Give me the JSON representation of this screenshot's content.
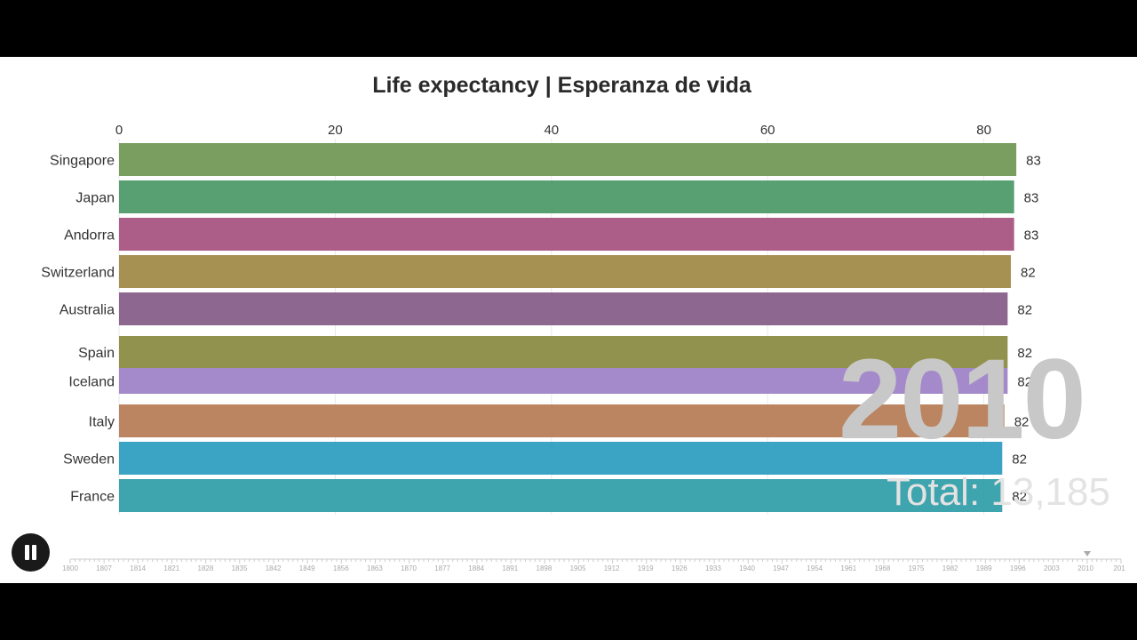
{
  "title": "Life expectancy | Esperanza de vida",
  "year_label": "2010",
  "total_label": "Total: 13,185",
  "colors": {
    "background": "#ffffff",
    "letterbox": "#000000",
    "tick_text": "#333333",
    "timeline_text": "#aaaaaa"
  },
  "controls": {
    "pause_icon": "pause-icon"
  },
  "timeline": {
    "ticks": [
      "1800",
      "1807",
      "1814",
      "1821",
      "1828",
      "1835",
      "1842",
      "1849",
      "1856",
      "1863",
      "1870",
      "1877",
      "1884",
      "1891",
      "1898",
      "1905",
      "1912",
      "1919",
      "1926",
      "1933",
      "1940",
      "1947",
      "1954",
      "1961",
      "1968",
      "1975",
      "1982",
      "1989",
      "1996",
      "2003",
      "2010",
      "201"
    ],
    "current": "2010"
  },
  "chart_data": {
    "type": "bar",
    "orientation": "horizontal",
    "title": "Life expectancy | Esperanza de vida",
    "xlim": [
      0,
      83
    ],
    "x_ticks": [
      0,
      20,
      40,
      60,
      80
    ],
    "grid": true,
    "categories": [
      "Singapore",
      "Japan",
      "Andorra",
      "Switzerland",
      "Australia",
      "Spain",
      "Iceland",
      "Italy",
      "Sweden",
      "France"
    ],
    "values": [
      83.0,
      82.8,
      82.8,
      82.5,
      82.2,
      82.2,
      82.2,
      81.9,
      81.7,
      81.7
    ],
    "value_labels": [
      "83",
      "83",
      "83",
      "82",
      "82",
      "82",
      "82",
      "82",
      "82",
      "82"
    ],
    "bar_colors": [
      "#6f9553",
      "#4a9766",
      "#a5507f",
      "#a08843",
      "#835a87",
      "#88893f",
      "#9c80c6",
      "#b47b52",
      "#2a9bbe",
      "#2e9ca6"
    ]
  }
}
